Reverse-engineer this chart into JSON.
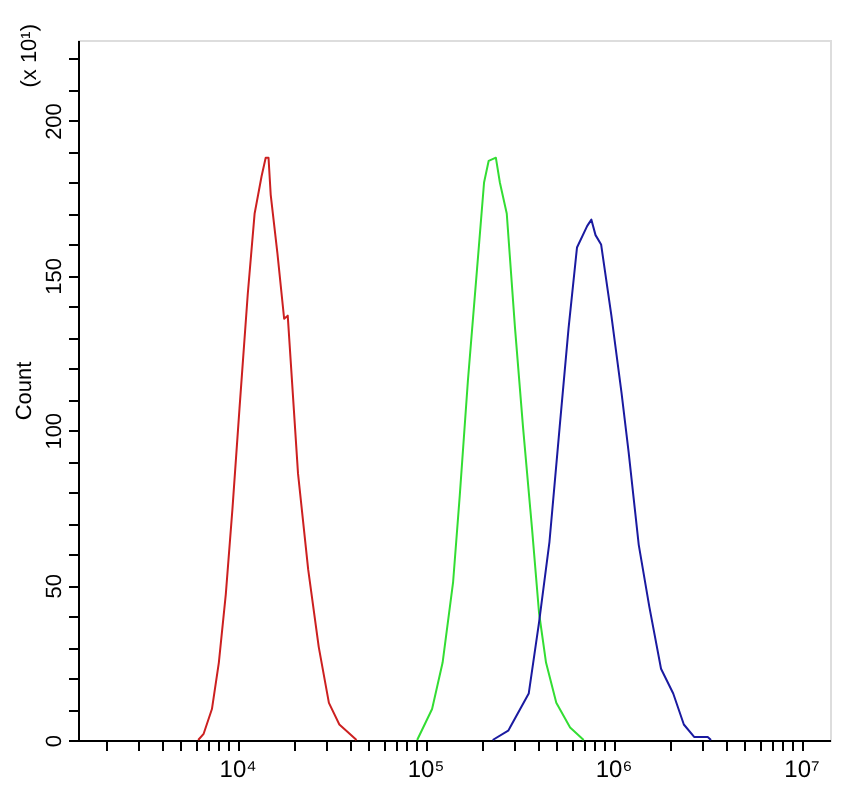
{
  "chart_data": {
    "type": "line",
    "ylabel": "Count",
    "annotations": [
      "(x 10¹)"
    ],
    "log": "x",
    "grid": false,
    "legend": false,
    "marker": "none",
    "line_style": "solid",
    "xlim": [
      1425,
      14260000
    ],
    "xticks": [
      {
        "value": 2000,
        "label": null
      },
      {
        "value": 3000,
        "label": null
      },
      {
        "value": 4000,
        "label": null
      },
      {
        "value": 5000,
        "label": null
      },
      {
        "value": 6000,
        "label": null
      },
      {
        "value": 7000,
        "label": null
      },
      {
        "value": 8000,
        "label": null
      },
      {
        "value": 9000,
        "label": null
      },
      {
        "value": 10000,
        "label": "10⁴"
      },
      {
        "value": 20000,
        "label": null
      },
      {
        "value": 30000,
        "label": null
      },
      {
        "value": 40000,
        "label": null
      },
      {
        "value": 50000,
        "label": null
      },
      {
        "value": 60000,
        "label": null
      },
      {
        "value": 70000,
        "label": null
      },
      {
        "value": 80000,
        "label": null
      },
      {
        "value": 90000,
        "label": null
      },
      {
        "value": 100000,
        "label": "10⁵"
      },
      {
        "value": 200000,
        "label": null
      },
      {
        "value": 300000,
        "label": null
      },
      {
        "value": 400000,
        "label": null
      },
      {
        "value": 500000,
        "label": null
      },
      {
        "value": 600000,
        "label": null
      },
      {
        "value": 700000,
        "label": null
      },
      {
        "value": 800000,
        "label": null
      },
      {
        "value": 900000,
        "label": null
      },
      {
        "value": 1000000,
        "label": "10⁶"
      },
      {
        "value": 2000000,
        "label": null
      },
      {
        "value": 3000000,
        "label": null
      },
      {
        "value": 4000000,
        "label": null
      },
      {
        "value": 5000000,
        "label": null
      },
      {
        "value": 6000000,
        "label": null
      },
      {
        "value": 7000000,
        "label": null
      },
      {
        "value": 8000000,
        "label": null
      },
      {
        "value": 9000000,
        "label": null
      },
      {
        "value": 10000000,
        "label": "10⁷"
      }
    ],
    "ylim": [
      0,
      226
    ],
    "yticks": [
      0,
      {
        "value": 10,
        "label": null
      },
      {
        "value": 20,
        "label": null
      },
      {
        "value": 30,
        "label": null
      },
      {
        "value": 40,
        "label": null
      },
      50,
      {
        "value": 60,
        "label": null
      },
      {
        "value": 70,
        "label": null
      },
      {
        "value": 80,
        "label": null
      },
      {
        "value": 90,
        "label": null
      },
      100,
      {
        "value": 110,
        "label": null
      },
      {
        "value": 120,
        "label": null
      },
      {
        "value": 130,
        "label": null
      },
      {
        "value": 140,
        "label": null
      },
      150,
      {
        "value": 160,
        "label": null
      },
      {
        "value": 170,
        "label": null
      },
      {
        "value": 180,
        "label": null
      },
      {
        "value": 190,
        "label": null
      },
      200,
      {
        "value": 210,
        "label": null
      },
      {
        "value": 220,
        "label": null
      }
    ],
    "series": [
      {
        "color": "#cc2020",
        "x": [
          6210,
          6640,
          7350,
          8000,
          8710,
          9460,
          10300,
          11400,
          12400,
          13500,
          14200,
          14700,
          15100,
          16400,
          17800,
          18600,
          19400,
          21100,
          23900,
          27200,
          30800,
          35000,
          39700,
          43200
        ],
        "values": [
          0,
          2,
          10,
          25,
          47,
          75,
          107,
          144,
          170,
          182,
          188,
          188,
          176,
          157,
          136,
          137,
          120,
          86,
          55,
          30,
          12,
          5,
          2,
          0
        ]
      },
      {
        "color": "#33dd33",
        "x": [
          90800,
          109000,
          124000,
          141000,
          153000,
          169000,
          189000,
          206000,
          218000,
          238000,
          250000,
          272000,
          301000,
          332000,
          371000,
          404000,
          440000,
          499000,
          591000,
          698000
        ],
        "values": [
          0,
          10,
          25,
          51,
          79,
          116,
          152,
          180,
          187,
          188,
          180,
          170,
          133,
          101,
          68,
          41,
          25,
          12,
          4,
          0
        ]
      },
      {
        "color": "#1a1aa0",
        "x": [
          229000,
          277000,
          356000,
          404000,
          459000,
          520000,
          580000,
          643000,
          729000,
          767000,
          807000,
          864000,
          980000,
          1110000,
          1210000,
          1370000,
          1560000,
          1800000,
          2090000,
          2380000,
          2700000,
          3190000,
          3320000
        ],
        "values": [
          0,
          3,
          15,
          38,
          64,
          101,
          133,
          159,
          166,
          168,
          163,
          160,
          137,
          112,
          93,
          63,
          43,
          23,
          15,
          5,
          1,
          1,
          0
        ]
      }
    ]
  }
}
